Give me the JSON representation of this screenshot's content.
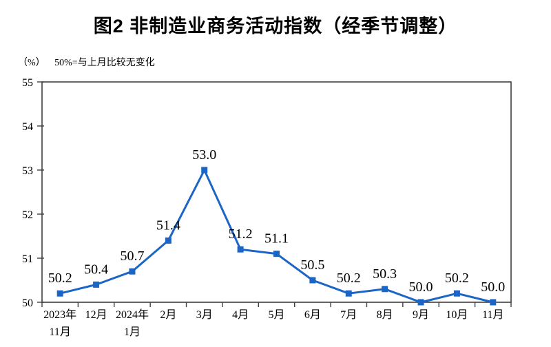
{
  "header": {
    "title": "图2 非制造业商务活动指数（经季节调整）"
  },
  "subtitle": {
    "unit": "（%）",
    "note": "50%=与上月比较无变化"
  },
  "chart_data": {
    "type": "line",
    "title": "图2 非制造业商务活动指数（经季节调整）",
    "ylabel": "（%）",
    "annotation": "50%=与上月比较无变化",
    "categories": [
      [
        "2023年",
        "11月"
      ],
      [
        "12月"
      ],
      [
        "2024年",
        "1月"
      ],
      [
        "2月"
      ],
      [
        "3月"
      ],
      [
        "4月"
      ],
      [
        "5月"
      ],
      [
        "6月"
      ],
      [
        "7月"
      ],
      [
        "8月"
      ],
      [
        "9月"
      ],
      [
        "10月"
      ],
      [
        "11月"
      ]
    ],
    "series": [
      {
        "name": "非制造业商务活动指数",
        "values": [
          50.2,
          50.4,
          50.7,
          51.4,
          53.0,
          51.2,
          51.1,
          50.5,
          50.2,
          50.3,
          50.0,
          50.2,
          50.0
        ]
      }
    ],
    "ylim": [
      50,
      55
    ],
    "ytick_step": 1,
    "yticks": [
      50,
      51,
      52,
      53,
      54,
      55
    ],
    "grid": false,
    "legend_position": "none",
    "data_labels": true,
    "marker": "square",
    "colors": {
      "line": "#1b65c6",
      "marker": "#1b65c6",
      "axis": "#3f3f3f",
      "text": "#000000",
      "title": "#000000",
      "background": "#ffffff"
    }
  }
}
